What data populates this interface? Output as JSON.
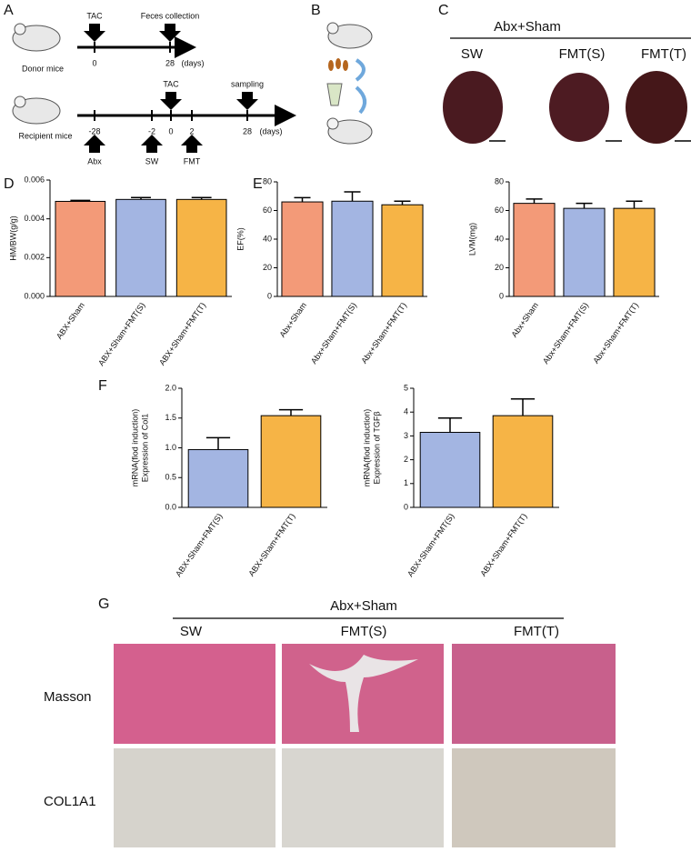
{
  "panel_labels": [
    "A",
    "B",
    "C",
    "D",
    "E",
    "F",
    "G"
  ],
  "timeline": {
    "donor": {
      "label": "Donor mice",
      "events": [
        "TAC",
        "Feces collection"
      ],
      "ticks": [
        "0",
        "28"
      ],
      "unit": "(days)"
    },
    "recipient": {
      "label": "Recipient mice",
      "events": [
        "TAC",
        "sampling"
      ],
      "ticks": [
        "-28",
        "-2",
        "0",
        "2",
        "28"
      ],
      "unit": "(days)",
      "treatments": [
        "Abx",
        "SW",
        "FMT"
      ]
    }
  },
  "heart_images": {
    "header": "Abx+Sham",
    "columns": [
      "SW",
      "FMT(S)",
      "FMT(T)"
    ]
  },
  "histology": {
    "header": "Abx+Sham",
    "columns": [
      "SW",
      "FMT(S)",
      "FMT(T)"
    ],
    "rows": [
      "Masson",
      "COL1A1"
    ]
  },
  "chart_data": [
    {
      "type": "bar",
      "ylabel": [
        "HM/BW(g/g)"
      ],
      "categories": [
        "ABX+Sham",
        "ABX+Sham+FMT(S)",
        "ABX+Sham+FMT(T)"
      ],
      "values": [
        0.0049,
        0.005,
        0.005
      ],
      "errors": [
        5e-05,
        0.0001,
        0.0001
      ],
      "colors": [
        "#f39a78",
        "#a3b5e2",
        "#f6b446"
      ],
      "ylim": [
        0,
        0.006
      ],
      "yticks": [
        {
          "value": 0,
          "label": "0.000"
        },
        {
          "value": 0.002,
          "label": "0.002"
        },
        {
          "value": 0.004,
          "label": "0.004"
        },
        {
          "value": 0.006,
          "label": "0.006"
        }
      ]
    },
    {
      "type": "bar",
      "ylabel": [
        "EF(%)"
      ],
      "categories": [
        "Abx+Sham",
        "Abx+Sham+FMT(S)",
        "Abx+Sham+FMT(T)"
      ],
      "values": [
        66,
        66.5,
        64
      ],
      "errors": [
        3,
        6.5,
        2.5
      ],
      "colors": [
        "#f39a78",
        "#a3b5e2",
        "#f6b446"
      ],
      "ylim": [
        0,
        80
      ],
      "yticks": [
        0,
        20,
        40,
        60,
        80
      ]
    },
    {
      "type": "bar",
      "ylabel": [
        "LVM(mg)"
      ],
      "categories": [
        "Abx+Sham",
        "Abx+Sham+FMT(S)",
        "Abx+Sham+FMT(T)"
      ],
      "values": [
        65,
        61.5,
        61.5
      ],
      "errors": [
        3,
        3.5,
        5
      ],
      "colors": [
        "#f39a78",
        "#a3b5e2",
        "#f6b446"
      ],
      "ylim": [
        0,
        80
      ],
      "yticks": [
        0,
        20,
        40,
        60,
        80
      ]
    },
    {
      "type": "bar",
      "ylabel": [
        "Expression of Col1",
        "mRNA(fiod induction)"
      ],
      "categories": [
        "ABX+Sham+FMT(S)",
        "ABX+Sham+FMT(T)"
      ],
      "values": [
        0.97,
        1.54
      ],
      "errors": [
        0.2,
        0.1
      ],
      "colors": [
        "#a3b5e2",
        "#f6b446"
      ],
      "ylim": [
        0,
        2
      ],
      "yticks": [
        {
          "value": 0,
          "label": "0.0"
        },
        0.5,
        {
          "value": 1,
          "label": "1.0"
        },
        1.5,
        {
          "value": 2,
          "label": "2.0"
        }
      ]
    },
    {
      "type": "bar",
      "ylabel": [
        "Expression of TGFβ",
        "mRNA(fiod induction)"
      ],
      "categories": [
        "ABX+Sham+FMT(S)",
        "ABX+Sham+FMT(T)"
      ],
      "values": [
        3.15,
        3.85
      ],
      "errors": [
        0.6,
        0.7
      ],
      "colors": [
        "#a3b5e2",
        "#f6b446"
      ],
      "ylim": [
        0,
        5
      ],
      "yticks": [
        0,
        1,
        2,
        3,
        4,
        5
      ]
    }
  ]
}
